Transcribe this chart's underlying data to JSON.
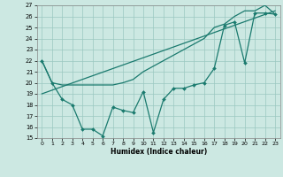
{
  "line1_x": [
    0,
    1,
    2,
    3,
    4,
    5,
    6,
    7,
    8,
    9,
    10,
    11,
    12,
    13,
    14,
    15,
    16,
    17,
    18,
    19,
    20,
    21,
    22,
    23
  ],
  "line1_y": [
    22,
    20,
    18.5,
    18,
    15.8,
    15.8,
    15.2,
    17.8,
    17.5,
    17.3,
    19.2,
    15.5,
    18.5,
    19.5,
    19.5,
    19.8,
    20.0,
    21.3,
    25.2,
    25.5,
    21.8,
    26.3,
    26.3,
    26.2
  ],
  "line2_x": [
    0,
    1,
    2,
    3,
    4,
    5,
    6,
    7,
    8,
    9,
    10,
    11,
    12,
    13,
    14,
    15,
    16,
    17,
    18,
    19,
    20,
    21,
    22,
    23
  ],
  "line2_y": [
    22,
    20,
    19.8,
    19.8,
    19.8,
    19.8,
    19.8,
    19.8,
    20.0,
    20.3,
    21.0,
    21.5,
    22.0,
    22.5,
    23.0,
    23.5,
    24.0,
    25.0,
    25.3,
    26.0,
    26.5,
    26.5,
    27.0,
    26.2
  ],
  "line3_x": [
    0,
    23
  ],
  "line3_y": [
    19.0,
    26.5
  ],
  "color": "#1a7a6e",
  "bg_color": "#cce8e2",
  "grid_color": "#9ac8c0",
  "xlabel": "Humidex (Indice chaleur)",
  "ylim": [
    15,
    27
  ],
  "xlim": [
    -0.5,
    23.5
  ],
  "yticks": [
    15,
    16,
    17,
    18,
    19,
    20,
    21,
    22,
    23,
    24,
    25,
    26,
    27
  ],
  "xticks": [
    0,
    1,
    2,
    3,
    4,
    5,
    6,
    7,
    8,
    9,
    10,
    11,
    12,
    13,
    14,
    15,
    16,
    17,
    18,
    19,
    20,
    21,
    22,
    23
  ]
}
